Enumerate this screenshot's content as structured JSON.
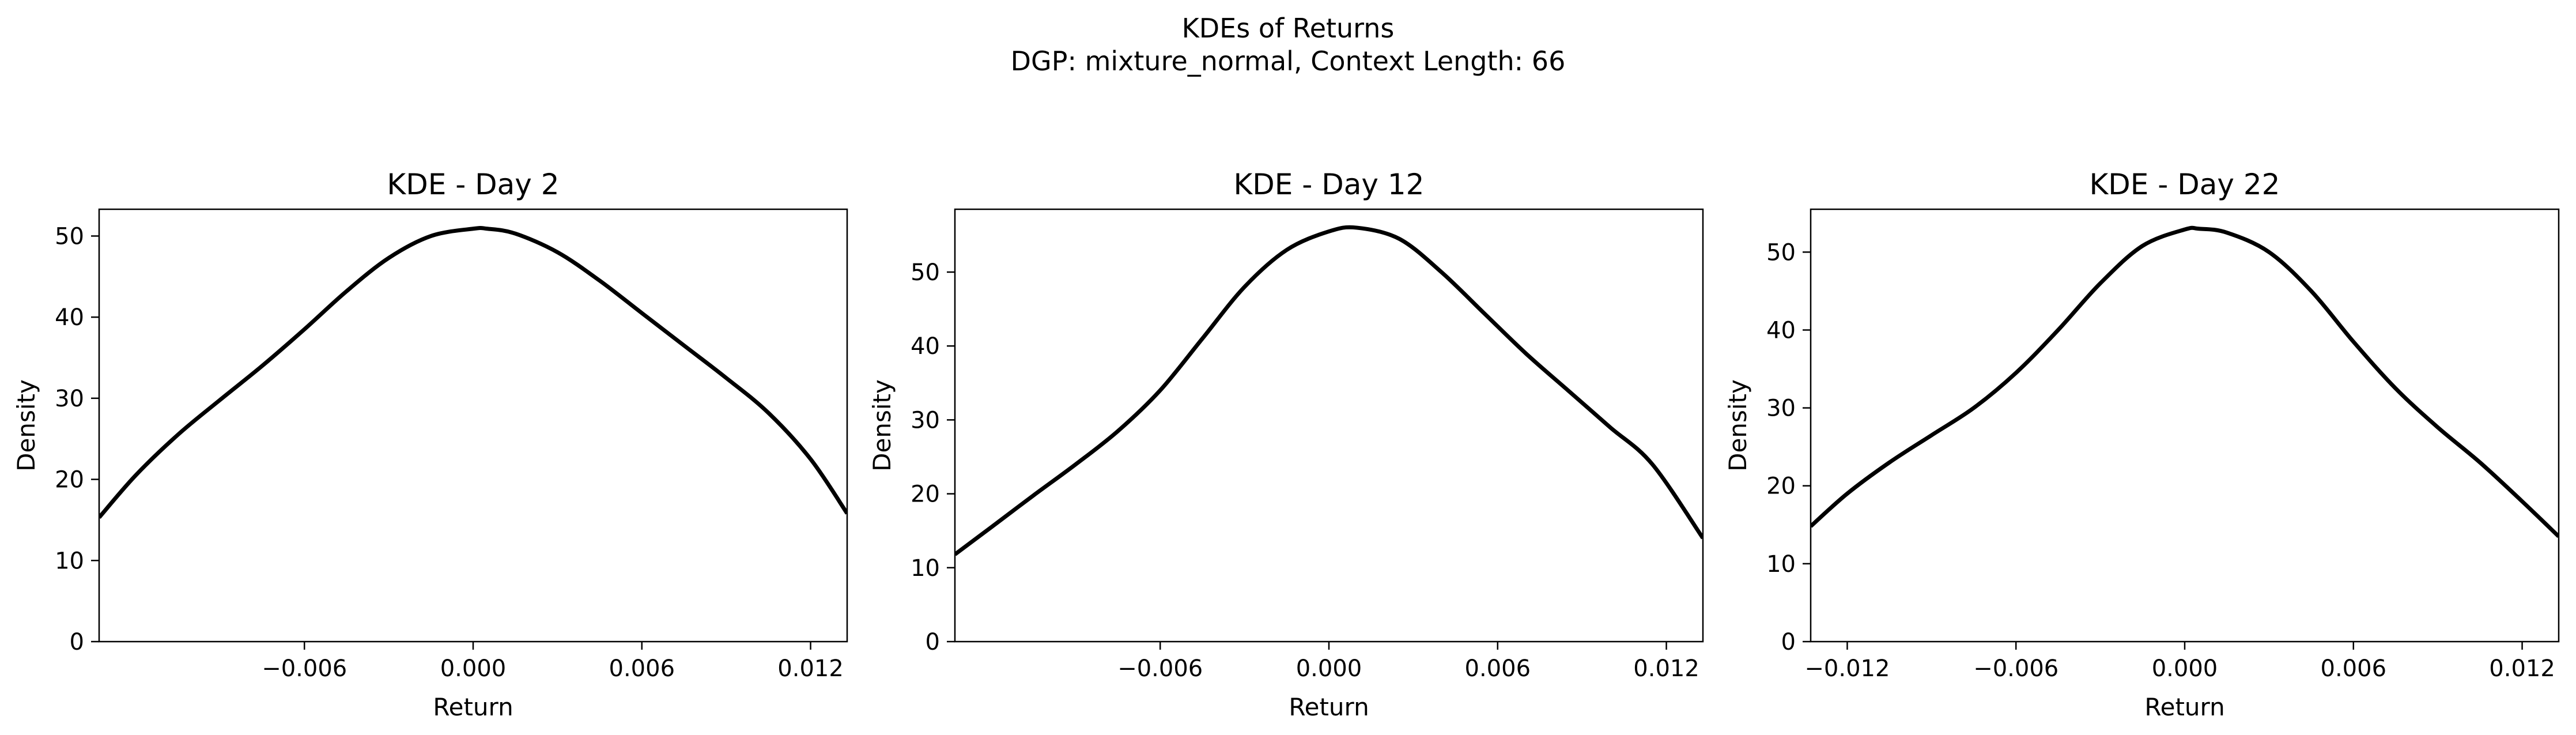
{
  "figure": {
    "title_line1": "KDEs of Returns",
    "title_line2": "DGP: mixture_normal, Context Length: 66"
  },
  "chart_data": [
    {
      "type": "line",
      "title": "KDE - Day 2",
      "xlabel": "Return",
      "ylabel": "Density",
      "xlim": [
        -0.0133,
        0.0133
      ],
      "ylim": [
        0,
        53.3
      ],
      "xticks": [
        -0.006,
        0.0,
        0.006,
        0.012
      ],
      "xtick_labels": [
        "−0.006",
        "0.000",
        "0.006",
        "0.012"
      ],
      "yticks": [
        0,
        10,
        20,
        30,
        40,
        50
      ],
      "ytick_labels": [
        "0",
        "10",
        "20",
        "30",
        "40",
        "50"
      ],
      "grid": false,
      "line_color": "#000000",
      "series": [
        {
          "x": [
            -0.0133,
            -0.012,
            -0.0105,
            -0.009,
            -0.0075,
            -0.006,
            -0.0045,
            -0.003,
            -0.0015,
            0.0,
            0.0005,
            0.0015,
            0.003,
            0.0045,
            0.006,
            0.0075,
            0.009,
            0.0105,
            0.012,
            0.0133
          ],
          "y": [
            15.3,
            20.5,
            25.5,
            29.8,
            34.0,
            38.5,
            43.2,
            47.3,
            50.0,
            50.9,
            50.9,
            50.3,
            48.0,
            44.5,
            40.5,
            36.5,
            32.5,
            28.2,
            22.5,
            15.8
          ]
        }
      ]
    },
    {
      "type": "line",
      "title": "KDE - Day 12",
      "xlabel": "Return",
      "ylabel": "Density",
      "xlim": [
        -0.0133,
        0.0133
      ],
      "ylim": [
        0,
        58.5
      ],
      "xticks": [
        -0.006,
        0.0,
        0.006,
        0.012
      ],
      "xtick_labels": [
        "−0.006",
        "0.000",
        "0.006",
        "0.012"
      ],
      "yticks": [
        0,
        10,
        20,
        30,
        40,
        50
      ],
      "ytick_labels": [
        "0",
        "10",
        "20",
        "30",
        "40",
        "50"
      ],
      "grid": false,
      "line_color": "#000000",
      "series": [
        {
          "x": [
            -0.0133,
            -0.012,
            -0.0105,
            -0.009,
            -0.0075,
            -0.006,
            -0.0045,
            -0.003,
            -0.0015,
            0.0,
            0.001,
            0.0025,
            0.004,
            0.0055,
            0.007,
            0.0085,
            0.01,
            0.0115,
            0.0133
          ],
          "y": [
            11.8,
            15.5,
            19.8,
            24.0,
            28.5,
            34.0,
            41.0,
            48.0,
            53.0,
            55.5,
            56.0,
            54.5,
            50.0,
            44.5,
            39.0,
            34.0,
            29.0,
            24.0,
            14.0
          ]
        }
      ]
    },
    {
      "type": "line",
      "title": "KDE - Day 22",
      "xlabel": "Return",
      "ylabel": "Density",
      "xlim": [
        -0.0133,
        0.0133
      ],
      "ylim": [
        0,
        55.5
      ],
      "xticks": [
        -0.012,
        -0.006,
        0.0,
        0.006,
        0.012
      ],
      "xtick_labels": [
        "−0.012",
        "−0.006",
        "0.000",
        "0.006",
        "0.012"
      ],
      "yticks": [
        0,
        10,
        20,
        30,
        40,
        50
      ],
      "ytick_labels": [
        "0",
        "10",
        "20",
        "30",
        "40",
        "50"
      ],
      "grid": false,
      "line_color": "#000000",
      "series": [
        {
          "x": [
            -0.0133,
            -0.012,
            -0.0105,
            -0.009,
            -0.0075,
            -0.006,
            -0.0045,
            -0.003,
            -0.0015,
            0.0,
            0.0005,
            0.0015,
            0.003,
            0.0045,
            0.006,
            0.0075,
            0.009,
            0.0105,
            0.012,
            0.0133
          ],
          "y": [
            14.8,
            19.0,
            23.0,
            26.5,
            30.0,
            34.5,
            40.0,
            46.0,
            50.8,
            52.9,
            53.0,
            52.5,
            50.0,
            45.0,
            38.5,
            32.5,
            27.5,
            23.0,
            18.0,
            13.5
          ]
        }
      ]
    }
  ]
}
